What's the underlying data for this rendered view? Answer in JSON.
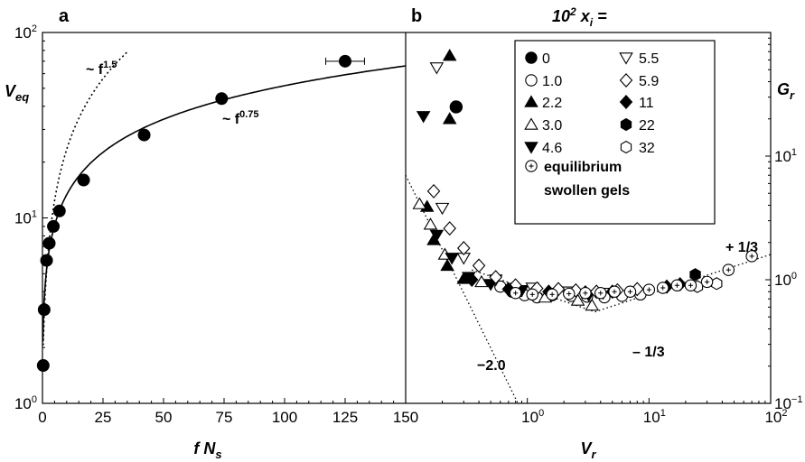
{
  "chart_data": [
    {
      "panel": "a",
      "type": "scatter",
      "xlabel": "f N_s",
      "ylabel": "V_eq",
      "xlim": [
        0,
        150
      ],
      "ylim": [
        1,
        100
      ],
      "yscale": "log",
      "x_ticks": [
        "0",
        "25",
        "50",
        "75",
        "100",
        "125",
        "150"
      ],
      "y_ticks": [
        {
          "base": "10",
          "exp": "0",
          "v": 1
        },
        {
          "base": "10",
          "exp": "1",
          "v": 10
        },
        {
          "base": "10",
          "exp": "2",
          "v": 100
        }
      ],
      "points": [
        {
          "x": 0.3,
          "y": 1.6
        },
        {
          "x": 0.7,
          "y": 3.2
        },
        {
          "x": 1.7,
          "y": 5.9
        },
        {
          "x": 2.8,
          "y": 7.3
        },
        {
          "x": 4.5,
          "y": 9.0
        },
        {
          "x": 7.0,
          "y": 10.9
        },
        {
          "x": 17.0,
          "y": 16.0
        },
        {
          "x": 42.0,
          "y": 28.0
        },
        {
          "x": 74.0,
          "y": 44.0
        },
        {
          "x": 125.0,
          "y": 70.0
        }
      ],
      "errorbar": {
        "x": 125.0,
        "y": 70.0,
        "xerr": 8
      },
      "fit_solid": {
        "label": "~ f",
        "exp": "0.75"
      },
      "fit_dotted": {
        "label": "~ f",
        "exp": "1.5"
      }
    },
    {
      "panel": "b",
      "type": "scatter",
      "xlabel": "V_r",
      "ylabel": "G_r",
      "xscale": "log",
      "yscale": "log",
      "xlim": [
        0.1,
        100
      ],
      "ylim": [
        0.1,
        100
      ],
      "x_ticks": [
        {
          "base": "10",
          "exp": "0",
          "v": 1
        },
        {
          "base": "10",
          "exp": "1",
          "v": 10
        },
        {
          "base": "10",
          "exp": "2",
          "v": 100
        }
      ],
      "y_ticks": [
        {
          "base": "10",
          "exp": "−1",
          "v": 0.1
        },
        {
          "base": "10",
          "exp": "0",
          "v": 1
        },
        {
          "base": "10",
          "exp": "1",
          "v": 10
        }
      ],
      "legend_title": {
        "base": "10",
        "exp": "2",
        "var": "x",
        "sub": "i",
        "eq": "="
      },
      "legend_position": "top-right",
      "series": [
        {
          "name": "0",
          "marker": "circle-filled",
          "points": [
            [
              0.26,
              25
            ]
          ]
        },
        {
          "name": "1.0",
          "marker": "circle-open",
          "points": [
            [
              0.6,
              0.88
            ],
            [
              0.75,
              0.8
            ],
            [
              0.95,
              0.75
            ],
            [
              1.2,
              0.72
            ],
            [
              1.6,
              0.75
            ],
            [
              2.3,
              0.74
            ],
            [
              3.1,
              0.73
            ],
            [
              4.3,
              0.72
            ],
            [
              6.0,
              0.74
            ],
            [
              8.5,
              0.76
            ]
          ]
        },
        {
          "name": "2.2",
          "marker": "triangle-up-filled",
          "points": [
            [
              0.23,
              65
            ],
            [
              0.23,
              20
            ],
            [
              0.15,
              3.9
            ],
            [
              0.17,
              2.1
            ],
            [
              0.22,
              1.3
            ],
            [
              0.3,
              1.02
            ]
          ]
        },
        {
          "name": "3.0",
          "marker": "triangle-up-open",
          "points": [
            [
              0.13,
              4.1
            ],
            [
              0.16,
              2.8
            ],
            [
              0.21,
              1.6
            ],
            [
              0.42,
              0.96
            ],
            [
              0.8,
              0.8
            ],
            [
              1.4,
              0.72
            ],
            [
              2.6,
              0.68
            ],
            [
              3.4,
              0.62
            ]
          ]
        },
        {
          "name": "4.6",
          "marker": "triangle-down-filled",
          "points": [
            [
              0.14,
              21
            ],
            [
              0.18,
              2.3
            ],
            [
              0.24,
              1.5
            ],
            [
              0.33,
              1.05
            ],
            [
              0.5,
              0.92
            ],
            [
              0.9,
              0.82
            ],
            [
              1.7,
              0.78
            ],
            [
              3.2,
              0.75
            ]
          ]
        },
        {
          "name": "5.5",
          "marker": "triangle-down-open",
          "points": [
            [
              0.18,
              52
            ],
            [
              0.2,
              3.8
            ],
            [
              0.3,
              1.5
            ],
            [
              0.55,
              1.0
            ],
            [
              1.1,
              0.86
            ],
            [
              2.1,
              0.8
            ],
            [
              4.2,
              0.78
            ]
          ]
        },
        {
          "name": "5.9",
          "marker": "diamond-open",
          "points": [
            [
              0.17,
              5.2
            ],
            [
              0.23,
              2.6
            ],
            [
              0.3,
              1.8
            ],
            [
              0.4,
              1.3
            ],
            [
              0.55,
              1.05
            ],
            [
              0.8,
              0.9
            ],
            [
              1.2,
              0.85
            ],
            [
              1.8,
              0.84
            ],
            [
              2.5,
              0.82
            ],
            [
              3.7,
              0.8
            ],
            [
              5.5,
              0.82
            ],
            [
              8.0,
              0.84
            ]
          ]
        },
        {
          "name": "11",
          "marker": "diamond-filled",
          "points": [
            [
              0.35,
              1.0
            ],
            [
              0.7,
              0.84
            ],
            [
              1.5,
              0.8
            ],
            [
              3.0,
              0.79
            ],
            [
              5.0,
              0.8
            ],
            [
              14.0,
              0.88
            ],
            [
              18.0,
              0.92
            ]
          ]
        },
        {
          "name": "22",
          "marker": "hexagon-filled",
          "points": [
            [
              24,
              1.1
            ]
          ]
        },
        {
          "name": "32",
          "marker": "hexagon-open",
          "points": [
            [
              25,
              0.88
            ],
            [
              36,
              0.93
            ]
          ]
        },
        {
          "name": "equilibrium swollen gels",
          "marker": "circle-dot",
          "points": [
            [
              0.8,
              0.78
            ],
            [
              1.1,
              0.76
            ],
            [
              1.6,
              0.76
            ],
            [
              2.2,
              0.77
            ],
            [
              3.0,
              0.78
            ],
            [
              4.0,
              0.78
            ],
            [
              5.2,
              0.8
            ],
            [
              7.0,
              0.8
            ],
            [
              10.0,
              0.83
            ],
            [
              13.0,
              0.86
            ],
            [
              17.0,
              0.9
            ],
            [
              22.0,
              0.9
            ],
            [
              30.0,
              0.96
            ],
            [
              45.0,
              1.2
            ],
            [
              70.0,
              1.55
            ]
          ]
        }
      ],
      "slopes": [
        {
          "label": "−2.0"
        },
        {
          "label": "– 1/3"
        },
        {
          "label": "+ 1/3"
        }
      ]
    }
  ]
}
